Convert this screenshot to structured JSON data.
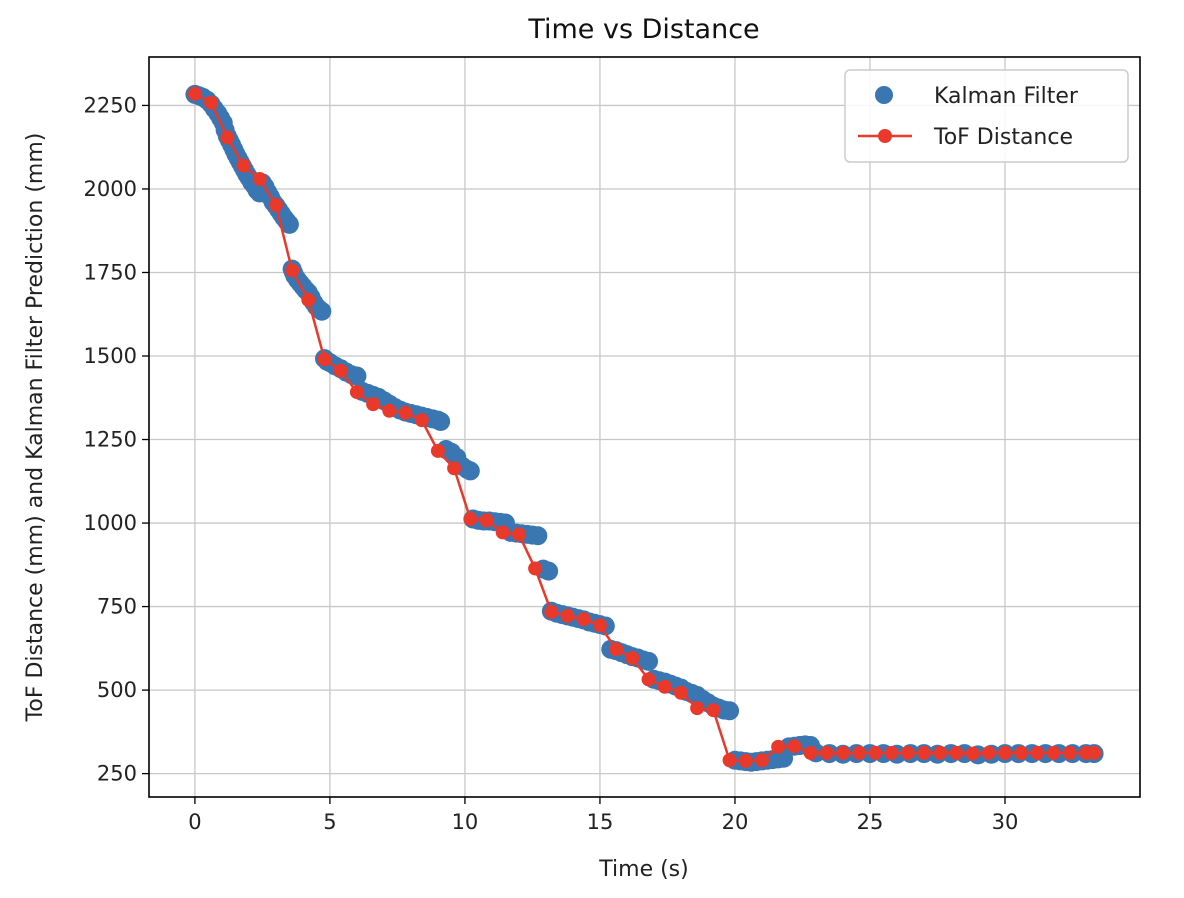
{
  "chart_data": {
    "type": "line",
    "title": "Time vs Distance",
    "xlabel": "Time (s)",
    "ylabel": "ToF Distance (mm) and Kalman Filter Prediction (mm)",
    "xlim": [
      -1.7,
      35.0
    ],
    "ylim": [
      180,
      2395
    ],
    "xticks": [
      0,
      5,
      10,
      15,
      20,
      25,
      30
    ],
    "yticks": [
      250,
      500,
      750,
      1000,
      1250,
      1500,
      1750,
      2000,
      2250
    ],
    "grid": true,
    "legend": "top-right",
    "colors": {
      "kalman": "#3a76b2",
      "tof": "#e8392a",
      "grid": "#c8c8c8",
      "axes": "#000000"
    },
    "series": [
      {
        "name": "Kalman Filter",
        "style": "markers",
        "x": [
          0.0,
          0.15,
          0.3,
          0.45,
          0.6,
          0.72,
          0.85,
          0.95,
          1.05,
          1.12,
          1.2,
          1.28,
          1.36,
          1.44,
          1.52,
          1.6,
          1.68,
          1.76,
          1.84,
          1.92,
          2.0,
          2.1,
          2.2,
          2.3,
          2.4,
          2.5,
          2.6,
          2.7,
          2.8,
          2.9,
          3.0,
          3.1,
          3.2,
          3.3,
          3.4,
          3.5,
          3.6,
          3.65,
          3.7,
          3.8,
          3.9,
          4.0,
          4.1,
          4.2,
          4.3,
          4.4,
          4.5,
          4.6,
          4.7,
          4.8,
          4.9,
          5.0,
          5.2,
          5.4,
          5.6,
          5.8,
          6.0,
          6.2,
          6.4,
          6.6,
          6.8,
          7.0,
          7.2,
          7.4,
          7.6,
          7.8,
          8.0,
          8.2,
          8.4,
          8.6,
          8.8,
          9.0,
          9.1,
          9.3,
          9.5,
          9.7,
          9.9,
          10.1,
          10.2,
          10.3,
          10.5,
          10.7,
          10.9,
          11.1,
          11.3,
          11.5,
          11.7,
          11.9,
          12.1,
          12.3,
          12.5,
          12.7,
          12.9,
          13.1,
          13.2,
          13.4,
          13.6,
          13.8,
          14.0,
          14.2,
          14.4,
          14.6,
          14.8,
          15.0,
          15.2,
          15.4,
          15.6,
          15.8,
          16.0,
          16.2,
          16.4,
          16.6,
          16.8,
          17.0,
          17.2,
          17.4,
          17.6,
          17.8,
          18.0,
          18.2,
          18.4,
          18.6,
          18.8,
          19.0,
          19.2,
          19.4,
          19.6,
          19.8,
          20.0,
          20.2,
          20.4,
          20.6,
          20.8,
          21.0,
          21.2,
          21.4,
          21.6,
          21.8,
          22.0,
          22.2,
          22.4,
          22.6,
          22.8,
          23.0,
          23.5,
          24.0,
          24.5,
          25.0,
          25.5,
          26.0,
          26.5,
          27.0,
          27.5,
          28.0,
          28.5,
          29.0,
          29.5,
          30.0,
          30.5,
          31.0,
          31.5,
          32.0,
          32.5,
          33.0,
          33.3
        ],
        "y": [
          2283,
          2279,
          2274,
          2266,
          2254,
          2240,
          2226,
          2212,
          2198,
          2176,
          2158,
          2145,
          2132,
          2118,
          2104,
          2092,
          2080,
          2068,
          2056,
          2044,
          2034,
          2020,
          2010,
          1996,
          1988,
          2018,
          2006,
          1990,
          1976,
          1960,
          1950,
          1938,
          1926,
          1914,
          1904,
          1894,
          1760,
          1750,
          1740,
          1728,
          1718,
          1708,
          1698,
          1690,
          1676,
          1660,
          1648,
          1640,
          1634,
          1492,
          1484,
          1480,
          1470,
          1462,
          1452,
          1444,
          1440,
          1394,
          1388,
          1382,
          1376,
          1366,
          1356,
          1346,
          1338,
          1332,
          1328,
          1324,
          1320,
          1316,
          1312,
          1308,
          1304,
          1220,
          1212,
          1196,
          1170,
          1160,
          1156,
          1012,
          1008,
          1006,
          1006,
          1004,
          1002,
          1000,
          972,
          970,
          968,
          966,
          964,
          962,
          862,
          856,
          736,
          730,
          726,
          722,
          718,
          714,
          710,
          704,
          700,
          696,
          692,
          622,
          618,
          612,
          606,
          600,
          596,
          590,
          586,
          532,
          528,
          524,
          518,
          512,
          506,
          496,
          490,
          484,
          472,
          462,
          452,
          446,
          440,
          438,
          290,
          288,
          286,
          284,
          286,
          288,
          290,
          292,
          294,
          296,
          330,
          332,
          334,
          336,
          334,
          312,
          310,
          308,
          310,
          310,
          310,
          308,
          310,
          310,
          308,
          310,
          310,
          306,
          308,
          310,
          310,
          310,
          310,
          310,
          310,
          310,
          310
        ]
      },
      {
        "name": "ToF Distance",
        "style": "line-markers",
        "x": [
          0.0,
          0.6,
          1.2,
          1.8,
          2.4,
          3.0,
          3.6,
          4.2,
          4.8,
          5.4,
          6.0,
          6.6,
          7.2,
          7.8,
          8.4,
          9.0,
          9.6,
          10.2,
          10.8,
          11.4,
          12.0,
          12.6,
          13.2,
          13.8,
          14.4,
          15.0,
          15.6,
          16.2,
          16.8,
          17.4,
          18.0,
          18.6,
          19.2,
          19.8,
          20.4,
          21.0,
          21.6,
          22.2,
          22.8,
          23.4,
          24.0,
          24.6,
          25.2,
          25.8,
          26.4,
          27.0,
          27.6,
          28.2,
          28.8,
          29.4,
          30.0,
          30.6,
          31.2,
          31.8,
          32.4,
          33.0,
          33.3
        ],
        "y": [
          2285,
          2258,
          2154,
          2070,
          2030,
          1952,
          1756,
          1668,
          1490,
          1456,
          1392,
          1356,
          1336,
          1330,
          1308,
          1216,
          1164,
          1012,
          1008,
          972,
          966,
          864,
          734,
          722,
          712,
          694,
          622,
          596,
          532,
          510,
          492,
          446,
          440,
          290,
          288,
          290,
          330,
          332,
          312,
          312,
          312,
          312,
          312,
          312,
          312,
          312,
          312,
          312,
          310,
          312,
          312,
          312,
          312,
          312,
          312,
          312,
          312
        ]
      }
    ]
  },
  "legend": {
    "kalman_label": "Kalman Filter",
    "tof_label": "ToF Distance"
  }
}
